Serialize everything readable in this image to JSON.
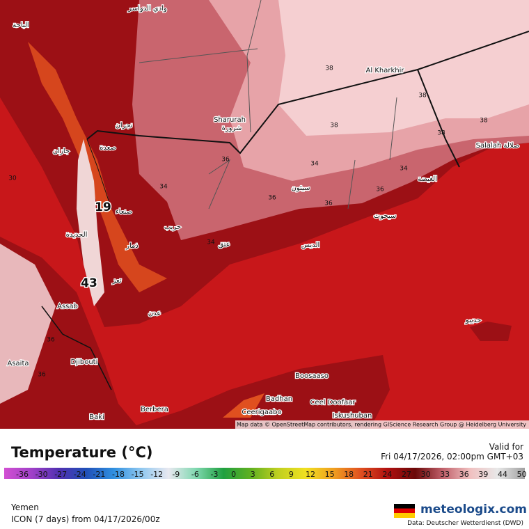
{
  "map": {
    "labels": [
      "وادي الدواسر",
      "الباحة",
      "Al Kharkhir",
      "38",
      "38",
      "38",
      "38",
      "38",
      "Sharurah",
      "شرورة",
      "نجران",
      "صعدة",
      "جازان",
      "36",
      "34",
      "34",
      "34",
      "Salalah صلالة",
      "الغيضة",
      "سيئون",
      "36",
      "36",
      "36",
      "19",
      "صنعاء",
      "سيحوت",
      "الحديدة",
      "حريب",
      "34",
      "عتق",
      "الديس",
      "ذمار",
      "43",
      "تعز",
      "Assab",
      "عدن",
      "حديبو",
      "36",
      "36",
      "Asaita",
      "Djibouti",
      "Boosaaso",
      "Badhan",
      "Ceel Doofaar",
      "Ceerigaabo",
      "Iskushuban",
      "Berbera",
      "Baki",
      "30"
    ],
    "attribution": "Map data © OpenStreetMap contributors, rendering GIScience Research Group @ Heidelberg University"
  },
  "legend": {
    "title": "Temperature (°C)",
    "valid_label": "Valid for",
    "valid_time": "Fri 04/17/2026, 02:00pm GMT+03",
    "ticks": [
      -36,
      -30,
      -27,
      -24,
      -21,
      -18,
      -15,
      -12,
      -9,
      -6,
      -3,
      0,
      3,
      6,
      9,
      12,
      15,
      18,
      21,
      24,
      27,
      30,
      33,
      36,
      39,
      44,
      50
    ]
  },
  "footer": {
    "region": "Yemen",
    "model": "ICON (7 days) from 04/17/2026/00z",
    "brand": "meteologix.com",
    "source": "Data: Deutscher Wetterdienst (DWD)"
  }
}
